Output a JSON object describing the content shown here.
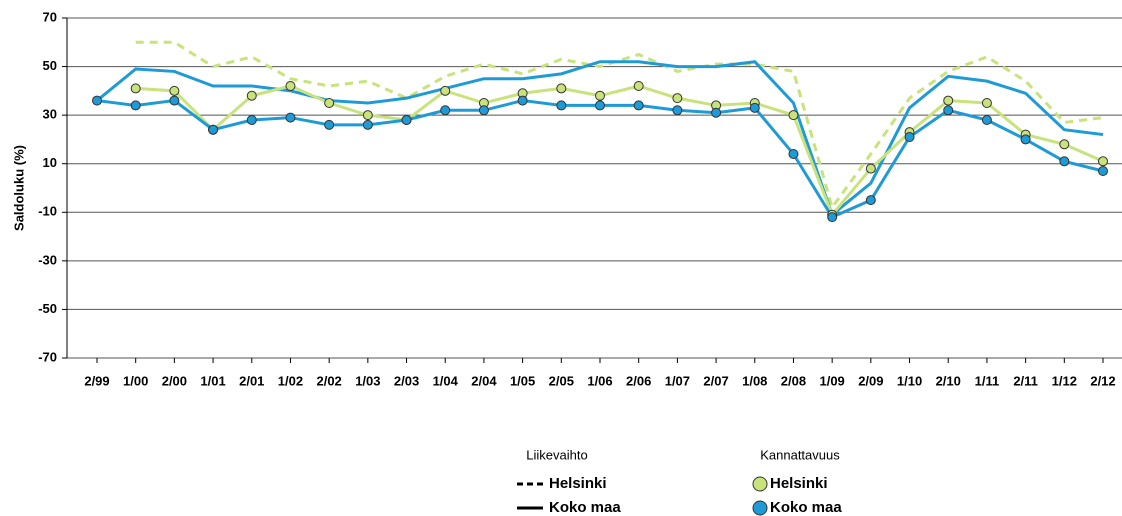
{
  "chart_data": {
    "type": "line",
    "y_label": "Saldoluku (%)",
    "categories": [
      "2/99",
      "1/00",
      "2/00",
      "1/01",
      "2/01",
      "1/02",
      "2/02",
      "1/03",
      "2/03",
      "1/04",
      "2/04",
      "1/05",
      "2/05",
      "1/06",
      "2/06",
      "1/07",
      "2/07",
      "1/08",
      "2/08",
      "1/09",
      "2/09",
      "1/10",
      "2/10",
      "1/11",
      "2/11",
      "1/12",
      "2/12"
    ],
    "ylim": [
      -70,
      70
    ],
    "yticks": [
      -70,
      -50,
      -30,
      -10,
      10,
      30,
      50,
      70
    ],
    "grid": true,
    "series_groups": [
      {
        "name": "Liikevaihto",
        "series": [
          {
            "name": "Helsinki",
            "color": "#c8e27c",
            "dashed": true,
            "markers": false,
            "values": [
              null,
              60,
              60,
              50,
              54,
              45,
              42,
              44,
              37,
              46,
              51,
              47,
              53,
              50,
              55,
              48,
              51,
              51,
              48,
              -8,
              14,
              37,
              48,
              54,
              44,
              27,
              29
            ]
          },
          {
            "name": "Koko maa",
            "color": "#1e9bd7",
            "dashed": false,
            "markers": false,
            "values": [
              36,
              49,
              48,
              42,
              42,
              40,
              36,
              35,
              37,
              41,
              45,
              45,
              47,
              52,
              52,
              50,
              50,
              52,
              35,
              -11,
              2,
              33,
              46,
              44,
              39,
              24,
              22
            ]
          }
        ]
      },
      {
        "name": "Kannattavuus",
        "series": [
          {
            "name": "Helsinki",
            "color": "#c8e27c",
            "dashed": false,
            "markers": true,
            "values": [
              null,
              41,
              40,
              24,
              38,
              42,
              35,
              30,
              28,
              40,
              35,
              39,
              41,
              38,
              42,
              37,
              34,
              35,
              30,
              -11,
              8,
              23,
              36,
              35,
              22,
              18,
              11
            ]
          },
          {
            "name": "Koko maa",
            "color": "#1e9bd7",
            "dashed": false,
            "markers": true,
            "values": [
              36,
              34,
              36,
              24,
              28,
              29,
              26,
              26,
              28,
              32,
              32,
              36,
              34,
              34,
              34,
              32,
              31,
              33,
              14,
              -12,
              -5,
              21,
              32,
              28,
              20,
              11,
              7
            ]
          }
        ]
      }
    ]
  }
}
